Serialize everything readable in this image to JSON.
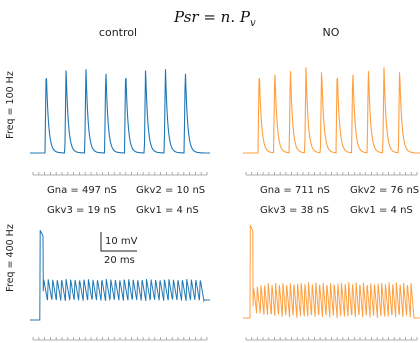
{
  "formula": "Psr = n. Pv",
  "formula_main": "Psr = n. P",
  "formula_sub": "v",
  "chart_data": [
    {
      "type": "line",
      "title": "control",
      "row_label": "Freq = 100 Hz",
      "color": "#1f77b4",
      "spike_count": 8,
      "params": [
        "Gna = 497 nS",
        "Gkv2 = 10 nS",
        "Gkv3 = 19 nS",
        "Gkv1 = 4 nS"
      ],
      "scale_bar": null
    },
    {
      "type": "line",
      "title": "NO",
      "row_label": "",
      "color": "#ff9f3f",
      "spike_count": 10,
      "params": [
        "Gna = 711 nS",
        "Gkv2 = 76 nS",
        "Gkv3 = 38 nS",
        "Gkv1 = 4 nS"
      ],
      "scale_bar": null
    },
    {
      "type": "line",
      "title": "",
      "row_label": "Freq = 400 Hz",
      "color": "#1f77b4",
      "spike_count": 36,
      "params": [],
      "scale_bar": {
        "voltage": "10 mV",
        "time": "20 ms"
      }
    },
    {
      "type": "line",
      "title": "",
      "row_label": "",
      "color": "#ff9f3f",
      "spike_count": 44,
      "params": [],
      "scale_bar": null
    }
  ]
}
